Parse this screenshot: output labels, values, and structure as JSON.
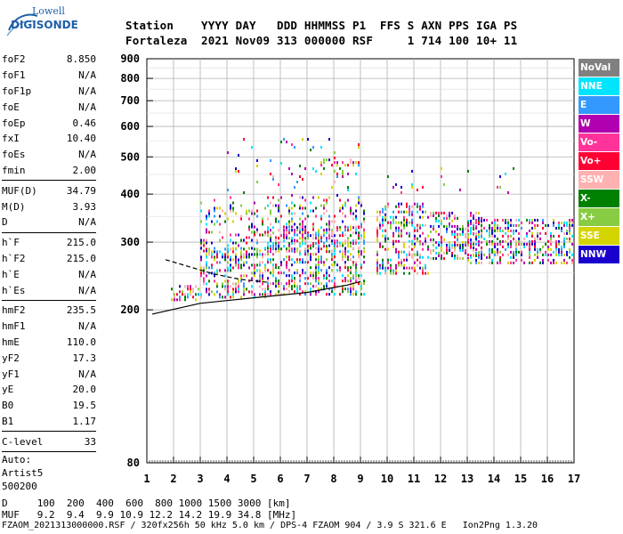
{
  "logo": {
    "top": "Lowell",
    "main": "DIGISONDE"
  },
  "header": {
    "labels": "Station    YYYY DAY   DDD HHMMSS P1  FFS S AXN PPS IGA PS",
    "values": "Fortaleza  2021 Nov09 313 000000 RSF     1 714 100 10+ 11"
  },
  "params": {
    "group1": [
      {
        "name": "foF2",
        "value": "8.850"
      },
      {
        "name": "foF1",
        "value": "N/A"
      },
      {
        "name": "foF1p",
        "value": "N/A"
      },
      {
        "name": "foE",
        "value": "N/A"
      },
      {
        "name": "foEp",
        "value": "0.46"
      },
      {
        "name": "fxI",
        "value": "10.40"
      },
      {
        "name": "foEs",
        "value": "N/A"
      },
      {
        "name": "fmin",
        "value": "2.00"
      }
    ],
    "group2": [
      {
        "name": "MUF(D)",
        "value": "34.79"
      },
      {
        "name": "M(D)",
        "value": "3.93"
      },
      {
        "name": "D",
        "value": "N/A"
      }
    ],
    "group3": [
      {
        "name": "h`F",
        "value": "215.0"
      },
      {
        "name": "h`F2",
        "value": "215.0"
      },
      {
        "name": "h`E",
        "value": "N/A"
      },
      {
        "name": "h`Es",
        "value": "N/A"
      }
    ],
    "group4": [
      {
        "name": "hmF2",
        "value": "235.5"
      },
      {
        "name": "hmF1",
        "value": "N/A"
      },
      {
        "name": "hmE",
        "value": "110.0"
      },
      {
        "name": "yF2",
        "value": "17.3"
      },
      {
        "name": "yF1",
        "value": "N/A"
      },
      {
        "name": "yE",
        "value": "20.0"
      },
      {
        "name": "B0",
        "value": "19.5"
      },
      {
        "name": "B1",
        "value": "1.17"
      }
    ],
    "group5": [
      {
        "name": "C-level",
        "value": "33"
      }
    ],
    "auto": [
      "Auto:",
      "Artist5",
      "500200"
    ]
  },
  "legend": [
    {
      "label": "NoVal",
      "color": "#808080"
    },
    {
      "label": "NNE",
      "color": "#00e5ff"
    },
    {
      "label": "E",
      "color": "#3399ff"
    },
    {
      "label": "W",
      "color": "#b000b0"
    },
    {
      "label": "Vo-",
      "color": "#ff3399"
    },
    {
      "label": "Vo+",
      "color": "#ff0033"
    },
    {
      "label": "SSW",
      "color": "#ffb0b0"
    },
    {
      "label": "X-",
      "color": "#008000"
    },
    {
      "label": "X+",
      "color": "#88cc44"
    },
    {
      "label": "SSE",
      "color": "#d4d400"
    },
    {
      "label": "NNW",
      "color": "#1a00cc"
    }
  ],
  "footer": {
    "d_line": "D     100  200  400  600  800 1000 1500 3000 [km]",
    "muf_line": "MUF   9.2  9.4  9.9 10.9 12.2 14.2 19.9 34.8 [MHz]",
    "file_line": "FZAOM_2021313000000.RSF / 320fx256h 50 kHz 5.0 km / DPS-4 FZAOM 904 / 3.9 S 321.6 E   Ion2Png 1.3.20"
  },
  "chart_data": {
    "type": "scatter",
    "xlim": [
      1,
      17
    ],
    "ylim": [
      80,
      900
    ],
    "x_ticks": [
      "1",
      "2",
      "3",
      "4",
      "5",
      "6",
      "7",
      "8",
      "9",
      "10",
      "11",
      "12",
      "13",
      "14",
      "15",
      "16",
      "17"
    ],
    "y_ticks": [
      "80",
      "200",
      "300",
      "400",
      "500",
      "600",
      "700",
      "800",
      "900"
    ],
    "y_scale": "log",
    "grid": true,
    "legend_position": "right",
    "traces": {
      "lower_solid": [
        [
          1.2,
          195
        ],
        [
          3,
          208
        ],
        [
          5,
          215
        ],
        [
          7,
          222
        ],
        [
          8.5,
          232
        ],
        [
          9,
          237
        ]
      ],
      "upper_dashed": [
        [
          1.7,
          270
        ],
        [
          2.5,
          260
        ],
        [
          3.5,
          248
        ],
        [
          4.5,
          240
        ],
        [
          5.5,
          236
        ]
      ]
    },
    "clusters": [
      {
        "x": [
          1.9,
          3.0
        ],
        "y": [
          212,
          232
        ],
        "density": 0.5
      },
      {
        "x": [
          3.0,
          5.5
        ],
        "y": [
          215,
          290
        ],
        "density": 0.45
      },
      {
        "x": [
          5.5,
          9.2
        ],
        "y": [
          220,
          330
        ],
        "density": 0.45
      },
      {
        "x": [
          3.0,
          9.2
        ],
        "y": [
          285,
          395
        ],
        "density": 0.22
      },
      {
        "x": [
          9.6,
          11.6
        ],
        "y": [
          250,
          380
        ],
        "density": 0.4
      },
      {
        "x": [
          11.6,
          13.6
        ],
        "y": [
          270,
          360
        ],
        "density": 0.5
      },
      {
        "x": [
          13.0,
          17.0
        ],
        "y": [
          265,
          345
        ],
        "density": 0.45
      },
      {
        "x": [
          4.0,
          9.0
        ],
        "y": [
          400,
          560
        ],
        "density": 0.05
      },
      {
        "x": [
          7.5,
          9.0
        ],
        "y": [
          475,
          495
        ],
        "density": 0.35
      },
      {
        "x": [
          7.5,
          9.0
        ],
        "y": [
          455,
          470
        ],
        "density": 0.25
      },
      {
        "x": [
          9.8,
          11.5
        ],
        "y": [
          395,
          470
        ],
        "density": 0.08
      },
      {
        "x": [
          12.0,
          14.8
        ],
        "y": [
          395,
          470
        ],
        "density": 0.04
      }
    ]
  }
}
